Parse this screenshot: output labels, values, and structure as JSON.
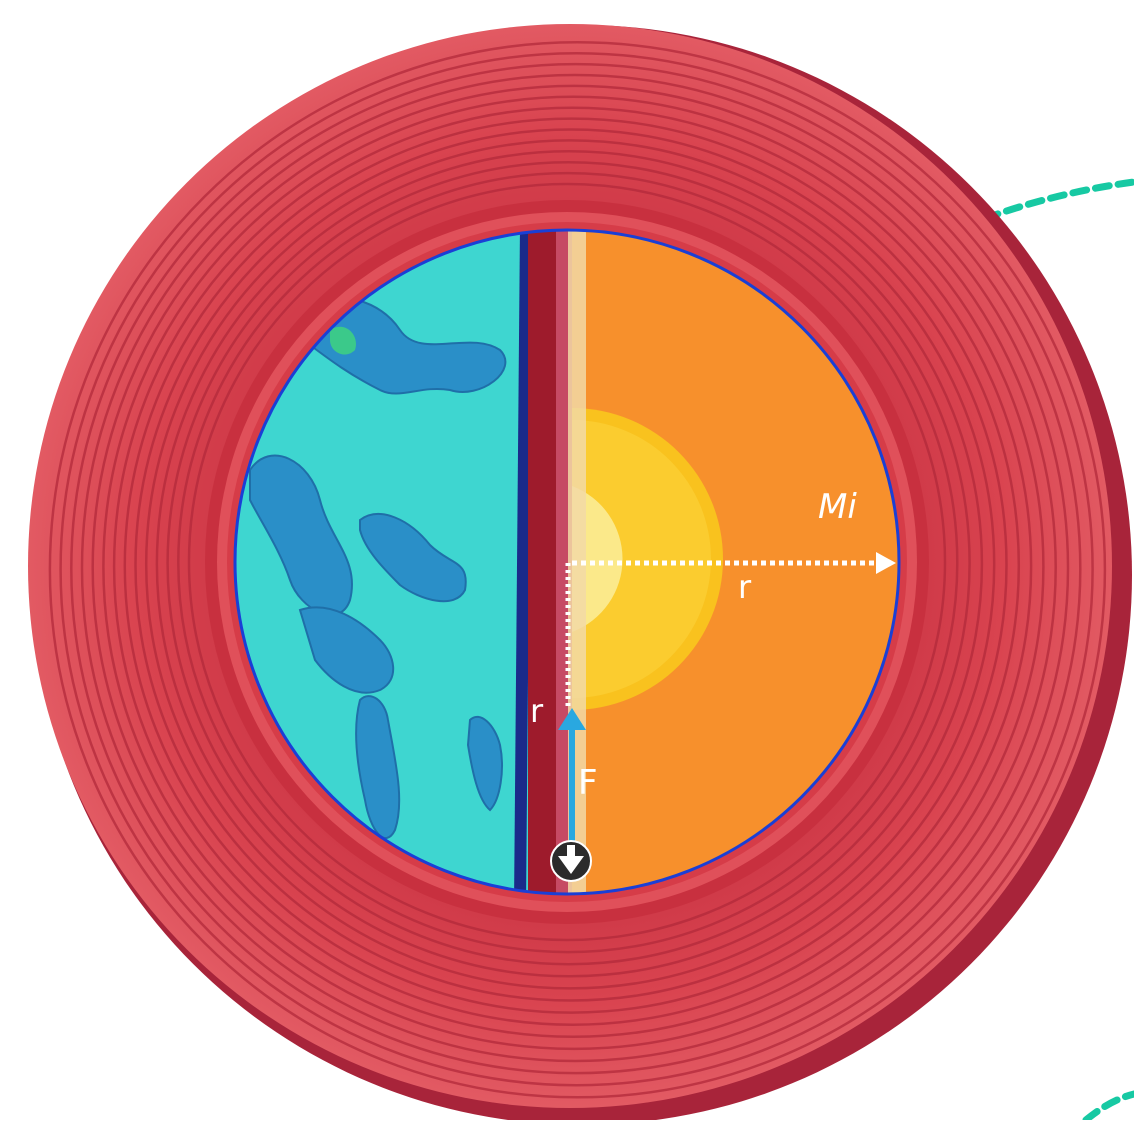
{
  "labels": {
    "mass": "Mi",
    "radius_horizontal": "r",
    "radius_vertical": "r",
    "force": "F"
  },
  "colors": {
    "ring_red": "#d9434f",
    "ring_dark": "#b32a3b",
    "ocean": "#3ed6d0",
    "land": "#2a8fc8",
    "tunnel": "#9e1b2c",
    "mantle": "#f7902c",
    "outer_core": "#f9c21e",
    "inner_core": "#fbe98a",
    "rim_blue": "#1a3fd6",
    "dashed_path": "#17c9a3",
    "force_arrow": "#29a8e0",
    "radius_arrow": "#ffffff"
  },
  "icons": {
    "ball": "object-down-arrow-icon"
  }
}
